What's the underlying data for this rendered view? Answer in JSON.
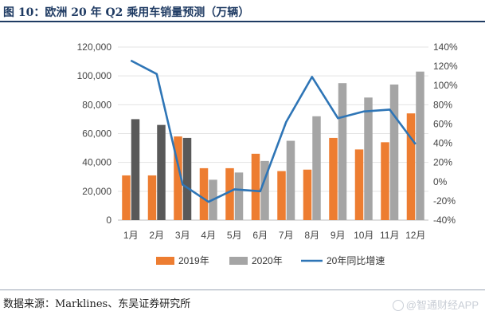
{
  "title": "图 10：欧洲 20 年 Q2 乘用车销量预测（万辆）",
  "source": "数据来源：Marklines、东吴证券研究所",
  "watermark": "@智通财经APP",
  "chart_data": {
    "type": "bar+line",
    "categories": [
      "1月",
      "2月",
      "3月",
      "4月",
      "5月",
      "6月",
      "7月",
      "8月",
      "9月",
      "10月",
      "11月",
      "12月"
    ],
    "series": [
      {
        "name": "2019年",
        "type": "bar",
        "axis": "left",
        "color": "#ed7d31",
        "values": [
          31000,
          31000,
          58000,
          36000,
          36000,
          46000,
          34000,
          35000,
          57000,
          49000,
          54000,
          74000
        ]
      },
      {
        "name": "2020年",
        "type": "bar",
        "axis": "left",
        "color_first3": "#595959",
        "color": "#a5a5a5",
        "values": [
          70000,
          66000,
          57000,
          28000,
          33000,
          41000,
          55000,
          72000,
          95000,
          85000,
          94000,
          103000
        ]
      },
      {
        "name": "20年同比增速",
        "type": "line",
        "axis": "right",
        "color": "#2e75b6",
        "values": [
          126,
          112,
          -3,
          -21,
          -8,
          -10,
          62,
          109,
          66,
          73,
          75,
          39
        ]
      }
    ],
    "y_left": {
      "min": 0,
      "max": 120000,
      "step": 20000,
      "tick_labels": [
        "0",
        "20,000",
        "40,000",
        "60,000",
        "80,000",
        "100,000",
        "120,000"
      ]
    },
    "y_right": {
      "min": -40,
      "max": 140,
      "step": 20,
      "tick_labels": [
        "-40%",
        "-20%",
        "0%",
        "20%",
        "40%",
        "60%",
        "80%",
        "100%",
        "120%",
        "140%"
      ]
    },
    "gridlines": true,
    "legend_position": "bottom"
  }
}
